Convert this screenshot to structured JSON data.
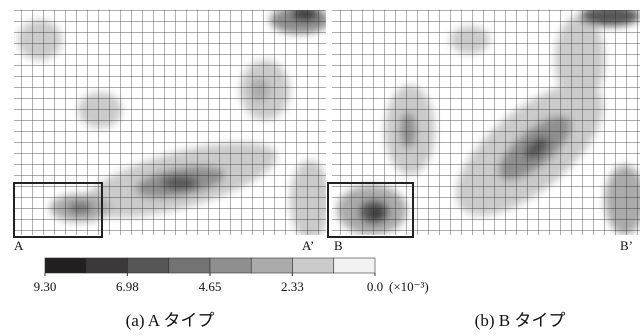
{
  "panels": [
    {
      "start_label": "A",
      "end_label": "A’",
      "caption": "(a)  A タイプ"
    },
    {
      "start_label": "B",
      "end_label": "B’",
      "caption": "(b)  B タイプ"
    }
  ],
  "colorbar": {
    "colors": [
      "#231f20",
      "#3b3939",
      "#575656",
      "#737373",
      "#8f8f8f",
      "#ababab",
      "#cbcbcb",
      "#f2f2f2"
    ],
    "ticks": [
      {
        "value": 9.3,
        "label": "9.30"
      },
      {
        "value": 6.98,
        "label": "6.98"
      },
      {
        "value": 4.65,
        "label": "4.65"
      },
      {
        "value": 2.33,
        "label": "2.33"
      },
      {
        "value": 0,
        "label": "0.0"
      }
    ],
    "unit": "(×10⁻³)"
  }
}
